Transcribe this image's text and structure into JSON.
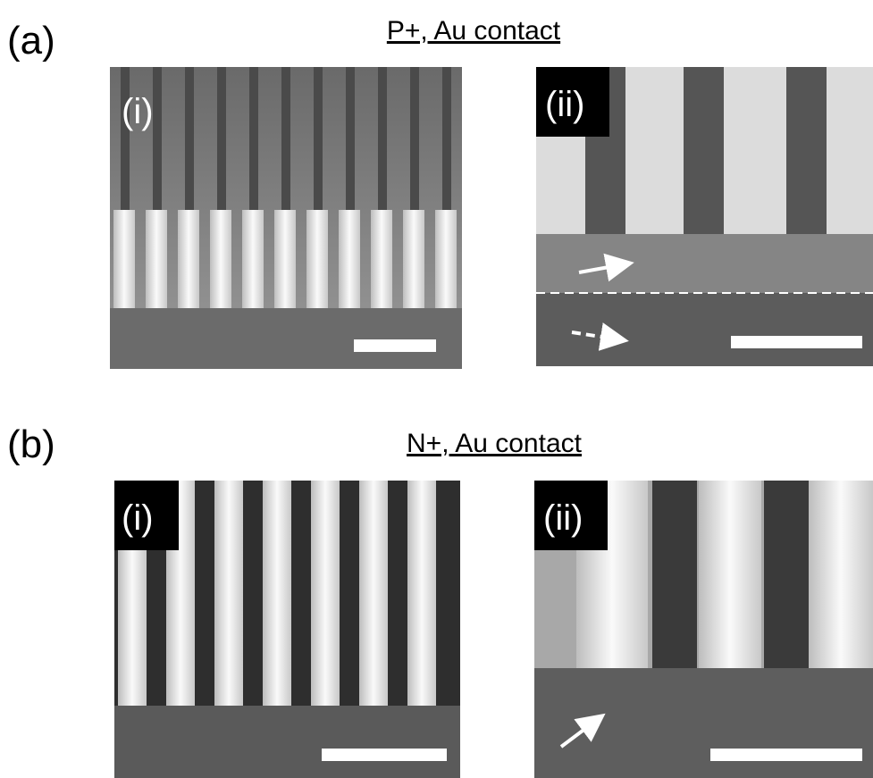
{
  "panels": [
    {
      "label": "(a)",
      "title": "P+, Au contact",
      "images": [
        {
          "label": "(i)"
        },
        {
          "label": "(ii)"
        }
      ]
    },
    {
      "label": "(b)",
      "title": "N+, Au contact",
      "images": [
        {
          "label": "(i)"
        },
        {
          "label": "(ii)"
        }
      ]
    }
  ]
}
